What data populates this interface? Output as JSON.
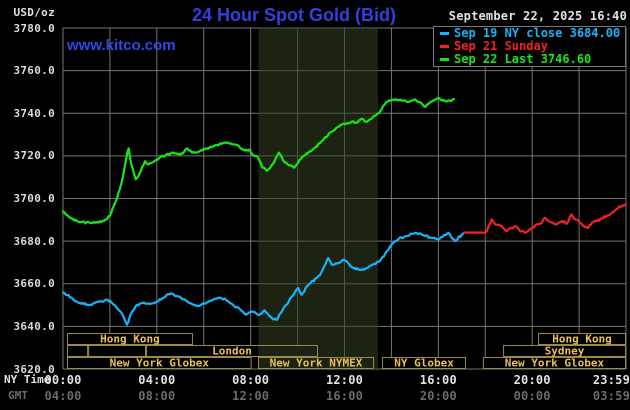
{
  "header": {
    "unit_label": "USD/oz",
    "title": "24 Hour Spot Gold (Bid)",
    "watermark": "www.kitco.com",
    "datetime": "September 22, 2025 16:40"
  },
  "legend": {
    "items": [
      {
        "label": "Sep 19 NY close 3684.00",
        "color": "#1ab2f8"
      },
      {
        "label": "Sep 21 Sunday",
        "color": "#f22222"
      },
      {
        "label": "Sep 22 Last 3746.60",
        "color": "#19e619"
      }
    ]
  },
  "axis": {
    "ny_time_label": "NY Time",
    "gmt_label": "GMT",
    "x_ticks_hours": [
      0,
      4,
      8,
      12,
      16,
      20,
      23.983
    ],
    "ny_ticks": [
      "00:00",
      "04:00",
      "08:00",
      "12:00",
      "16:00",
      "20:00",
      "23:59"
    ],
    "gmt_ticks": [
      "04:00",
      "08:00",
      "12:00",
      "16:00",
      "20:00",
      "00:00",
      "03:59"
    ],
    "y_ticks": [
      "3780.0",
      "3760.0",
      "3740.0",
      "3720.0",
      "3700.0",
      "3680.0",
      "3660.0",
      "3640.0",
      "3620.0"
    ]
  },
  "colors": {
    "background": "#000000",
    "grid": "#747474",
    "plot_border": "#747474",
    "title_blue": "#3340de",
    "watermark_blue": "#2e49e8",
    "session_border": "#9a8a48",
    "session_text": "#e8c054",
    "band": "rgba(52,64,34,0.55)"
  },
  "chart_data": {
    "type": "line",
    "title": "24 Hour Spot Gold (Bid)",
    "xlabel": "NY Time (hours 00:00-23:59)",
    "ylabel": "USD/oz",
    "xlim": [
      0,
      24
    ],
    "ylim": [
      3620,
      3780
    ],
    "y_tick_step": 20,
    "x_gridline_step_hours": 2,
    "grid": true,
    "legend_position": "top-right",
    "nymex_session_shading_hours": [
      8.33,
      13.43
    ],
    "series": [
      {
        "name": "Sep 19 NY close",
        "color": "#1ab2f8",
        "points": [
          [
            0,
            3656
          ],
          [
            0.35,
            3653.5
          ],
          [
            0.7,
            3651
          ],
          [
            1.1,
            3650
          ],
          [
            1.5,
            3651.5
          ],
          [
            1.9,
            3652.5
          ],
          [
            2.2,
            3650
          ],
          [
            2.45,
            3647
          ],
          [
            2.6,
            3644
          ],
          [
            2.73,
            3640.8
          ],
          [
            2.9,
            3646
          ],
          [
            3.1,
            3649.5
          ],
          [
            3.4,
            3651
          ],
          [
            3.7,
            3650.5
          ],
          [
            4.0,
            3651.5
          ],
          [
            4.3,
            3653.5
          ],
          [
            4.6,
            3655.5
          ],
          [
            4.9,
            3654
          ],
          [
            5.2,
            3652.5
          ],
          [
            5.5,
            3650.5
          ],
          [
            5.8,
            3649.5
          ],
          [
            6.1,
            3651
          ],
          [
            6.4,
            3652.5
          ],
          [
            6.7,
            3653.5
          ],
          [
            7.0,
            3652
          ],
          [
            7.3,
            3649.5
          ],
          [
            7.55,
            3648
          ],
          [
            7.8,
            3645.5
          ],
          [
            8.0,
            3647
          ],
          [
            8.33,
            3645.4
          ],
          [
            8.6,
            3647.5
          ],
          [
            8.85,
            3644.5
          ],
          [
            9.1,
            3643
          ],
          [
            9.4,
            3648.5
          ],
          [
            9.8,
            3654.5
          ],
          [
            10.03,
            3658
          ],
          [
            10.17,
            3654.8
          ],
          [
            10.5,
            3660
          ],
          [
            10.95,
            3664
          ],
          [
            11.3,
            3672
          ],
          [
            11.45,
            3669
          ],
          [
            11.7,
            3669.5
          ],
          [
            11.95,
            3671.3
          ],
          [
            12.1,
            3670.5
          ],
          [
            12.37,
            3667.3
          ],
          [
            12.65,
            3666.5
          ],
          [
            12.93,
            3667.3
          ],
          [
            13.2,
            3669
          ],
          [
            13.5,
            3670.5
          ],
          [
            13.8,
            3675.2
          ],
          [
            14.07,
            3679.1
          ],
          [
            14.35,
            3681.5
          ],
          [
            14.63,
            3682.3
          ],
          [
            15.07,
            3683.9
          ],
          [
            15.3,
            3683.1
          ],
          [
            15.7,
            3681.5
          ],
          [
            16.0,
            3680.7
          ],
          [
            16.42,
            3683.9
          ],
          [
            16.7,
            3680
          ],
          [
            17.05,
            3683.5
          ],
          [
            17.1,
            3684
          ]
        ]
      },
      {
        "name": "Sep 21 Sunday",
        "color": "#f22222",
        "points": [
          [
            17.1,
            3684
          ],
          [
            18.0,
            3684
          ],
          [
            18.07,
            3684.7
          ],
          [
            18.28,
            3690.2
          ],
          [
            18.42,
            3687.9
          ],
          [
            18.7,
            3687.1
          ],
          [
            18.92,
            3684.7
          ],
          [
            19.27,
            3687.1
          ],
          [
            19.48,
            3684.7
          ],
          [
            19.7,
            3683.9
          ],
          [
            19.92,
            3685.5
          ],
          [
            20.2,
            3687.9
          ],
          [
            20.42,
            3688.7
          ],
          [
            20.55,
            3691
          ],
          [
            20.7,
            3689.4
          ],
          [
            20.83,
            3688.7
          ],
          [
            21.05,
            3687.9
          ],
          [
            21.27,
            3689.4
          ],
          [
            21.48,
            3688.2
          ],
          [
            21.68,
            3692.6
          ],
          [
            21.83,
            3690.2
          ],
          [
            22.05,
            3688.7
          ],
          [
            22.18,
            3687.1
          ],
          [
            22.4,
            3686.3
          ],
          [
            22.55,
            3688.7
          ],
          [
            22.75,
            3689.4
          ],
          [
            22.97,
            3690.7
          ],
          [
            23.18,
            3691.8
          ],
          [
            23.4,
            3693.4
          ],
          [
            23.6,
            3695
          ],
          [
            23.82,
            3696.5
          ],
          [
            23.98,
            3697.3
          ]
        ]
      },
      {
        "name": "Sep 22 Last",
        "color": "#19e619",
        "points": [
          [
            0,
            3694
          ],
          [
            0.3,
            3691
          ],
          [
            0.7,
            3689
          ],
          [
            1.2,
            3688.5
          ],
          [
            1.75,
            3689.5
          ],
          [
            2.0,
            3692
          ],
          [
            2.3,
            3700
          ],
          [
            2.55,
            3710
          ],
          [
            2.75,
            3722
          ],
          [
            2.8,
            3723.5
          ],
          [
            2.9,
            3716.5
          ],
          [
            3.1,
            3709
          ],
          [
            3.3,
            3712.5
          ],
          [
            3.5,
            3717.5
          ],
          [
            3.65,
            3716
          ],
          [
            3.9,
            3717.5
          ],
          [
            4.1,
            3719
          ],
          [
            4.4,
            3720.5
          ],
          [
            4.7,
            3721.5
          ],
          [
            5.0,
            3720.5
          ],
          [
            5.3,
            3723.5
          ],
          [
            5.5,
            3721.5
          ],
          [
            5.8,
            3722
          ],
          [
            6.1,
            3723.5
          ],
          [
            6.4,
            3724.5
          ],
          [
            6.8,
            3726
          ],
          [
            7.2,
            3725.5
          ],
          [
            7.5,
            3724.5
          ],
          [
            7.75,
            3722.5
          ],
          [
            7.95,
            3723
          ],
          [
            8.1,
            3720.5
          ],
          [
            8.3,
            3719.5
          ],
          [
            8.5,
            3714.5
          ],
          [
            8.7,
            3713
          ],
          [
            9.0,
            3717
          ],
          [
            9.2,
            3721.5
          ],
          [
            9.45,
            3717
          ],
          [
            9.65,
            3715.5
          ],
          [
            9.85,
            3714.5
          ],
          [
            10.2,
            3719.5
          ],
          [
            10.6,
            3722.5
          ],
          [
            11.0,
            3726.5
          ],
          [
            11.4,
            3731
          ],
          [
            11.7,
            3733.5
          ],
          [
            12.0,
            3735
          ],
          [
            12.3,
            3736
          ],
          [
            12.5,
            3735.5
          ],
          [
            12.75,
            3737.5
          ],
          [
            12.95,
            3736
          ],
          [
            13.2,
            3738
          ],
          [
            13.45,
            3740
          ],
          [
            13.65,
            3743.5
          ],
          [
            13.9,
            3746
          ],
          [
            14.15,
            3746.5
          ],
          [
            14.5,
            3746
          ],
          [
            14.7,
            3745.3
          ],
          [
            15.0,
            3746.5
          ],
          [
            15.3,
            3744.5
          ],
          [
            15.45,
            3743
          ],
          [
            15.7,
            3745.5
          ],
          [
            15.95,
            3747
          ],
          [
            16.15,
            3746
          ],
          [
            16.35,
            3745.5
          ],
          [
            16.67,
            3746.6
          ]
        ]
      }
    ],
    "sessions": [
      {
        "row": 1,
        "start": 0.17,
        "end": 5.54,
        "label": "Hong Kong"
      },
      {
        "row": 1,
        "start": 20.25,
        "end": 24,
        "label": "Hong Kong"
      },
      {
        "row": 2,
        "start": 0.17,
        "end": 1.07,
        "label": ""
      },
      {
        "row": 2,
        "start": 1.07,
        "end": 3.54,
        "label": ""
      },
      {
        "row": 2,
        "start": 3.54,
        "end": 10.87,
        "label": "London"
      },
      {
        "row": 2,
        "start": 18.76,
        "end": 24,
        "label": "Sydney"
      },
      {
        "row": 3,
        "start": 0.17,
        "end": 8.04,
        "label": "New York Globex"
      },
      {
        "row": 3,
        "start": 8.31,
        "end": 13.26,
        "label": "New York NYMEX"
      },
      {
        "row": 3,
        "start": 13.6,
        "end": 17.18,
        "label": "NY Globex"
      },
      {
        "row": 3,
        "start": 17.9,
        "end": 24,
        "label": "New York Globex"
      }
    ]
  }
}
